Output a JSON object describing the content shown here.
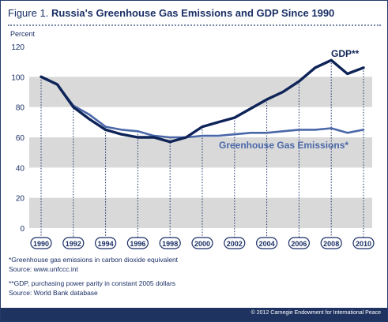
{
  "header": {
    "figure_label": "Figure 1.",
    "title": "Russia's Greenhouse Gas Emissions and GDP Since 1990"
  },
  "chart_data": {
    "type": "line",
    "ylabel": "Percent",
    "ylim": [
      0,
      120
    ],
    "yticks": [
      0,
      20,
      40,
      60,
      80,
      100,
      120
    ],
    "xticks": [
      "1990",
      "1992",
      "1994",
      "1996",
      "1998",
      "2000",
      "2002",
      "2004",
      "2006",
      "2008",
      "2010"
    ],
    "x": [
      1990,
      1991,
      1992,
      1993,
      1994,
      1995,
      1996,
      1997,
      1998,
      1999,
      2000,
      2001,
      2002,
      2003,
      2004,
      2005,
      2006,
      2007,
      2008,
      2009,
      2010
    ],
    "series": [
      {
        "name": "GDP**",
        "color": "#0e2357",
        "values": [
          100,
          95,
          80,
          72,
          65,
          62,
          60,
          60,
          57,
          60,
          67,
          70,
          73,
          79,
          85,
          90,
          97,
          106,
          111,
          102,
          106
        ]
      },
      {
        "name": "Greenhouse Gas Emissions*",
        "color": "#4a68a8",
        "values": [
          100,
          95,
          81,
          75,
          67,
          65,
          64,
          61,
          60,
          60,
          61,
          61,
          62,
          63,
          63,
          64,
          65,
          65,
          66,
          63,
          65
        ]
      }
    ],
    "shaded_bands": [
      [
        0,
        20
      ],
      [
        40,
        60
      ],
      [
        80,
        100
      ]
    ],
    "colors": {
      "band": "#d9d9d9",
      "plot_bg": "#ffffff",
      "axis": "#1a2f66"
    }
  },
  "notes": {
    "ghg_line1": "*Greenhouse gas emissions in carbon dioxide equivalent",
    "ghg_line2": "Source: www.unfccc.int",
    "gdp_line1": "**GDP, purchasing power parity in constant 2005 dollars",
    "gdp_line2": "Source: World Bank database"
  },
  "footer": {
    "copyright": "© 2012 Carnegie Endowment for International Peace"
  }
}
